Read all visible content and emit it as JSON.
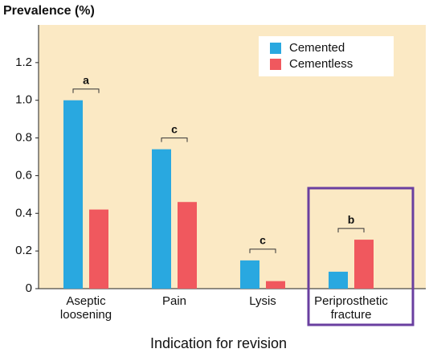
{
  "chart_data": {
    "type": "bar",
    "y_label": "Prevalence (%)",
    "x_label": "Indication for revision",
    "categories": [
      "Aseptic loosening",
      "Pain",
      "Lysis",
      "Periprosthetic fracture"
    ],
    "annotations": [
      "a",
      "c",
      "c",
      "b"
    ],
    "series": [
      {
        "name": "Cemented",
        "color": "#29a8e0",
        "values": [
          1.0,
          0.74,
          0.15,
          0.09
        ]
      },
      {
        "name": "Cementless",
        "color": "#f0585e",
        "values": [
          0.42,
          0.46,
          0.04,
          0.26
        ]
      }
    ],
    "ylim": [
      0,
      1.4
    ],
    "yticks": [
      0,
      0.2,
      0.4,
      0.6,
      0.8,
      {
        "value": 1.0,
        "label": "1.0"
      },
      1.2
    ],
    "legend": "top-right"
  }
}
